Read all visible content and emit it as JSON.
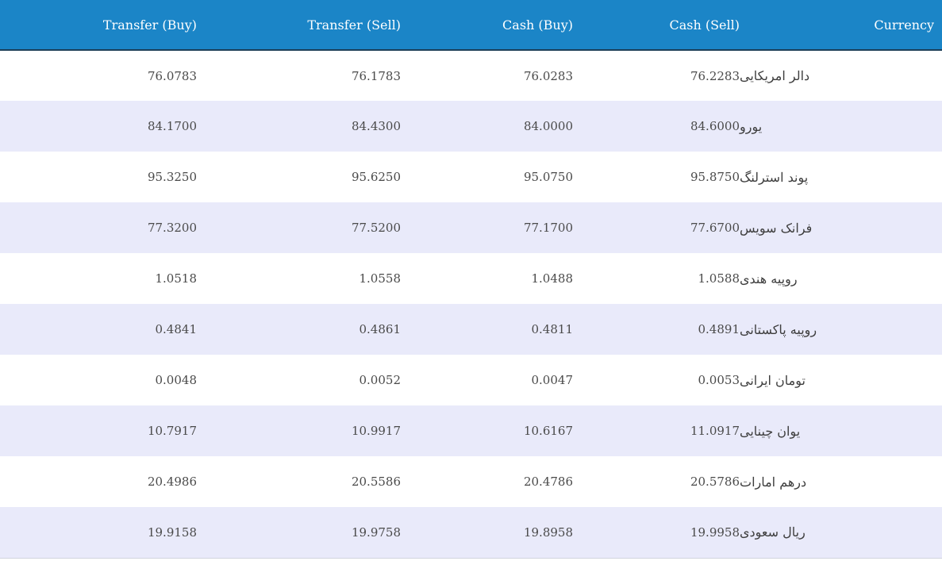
{
  "table": {
    "headers": {
      "transfer_buy": "Transfer (Buy)",
      "transfer_sell": "Transfer (Sell)",
      "cash_buy": "Cash (Buy)",
      "cash_sell": "Cash (Sell)",
      "currency": "Currency"
    },
    "rows": [
      {
        "transfer_buy": "76.0783",
        "transfer_sell": "76.1783",
        "cash_buy": "76.0283",
        "cash_sell": "76.2283",
        "currency": "دالر امریکایی"
      },
      {
        "transfer_buy": "84.1700",
        "transfer_sell": "84.4300",
        "cash_buy": "84.0000",
        "cash_sell": "84.6000",
        "currency": "یورو"
      },
      {
        "transfer_buy": "95.3250",
        "transfer_sell": "95.6250",
        "cash_buy": "95.0750",
        "cash_sell": "95.8750",
        "currency": "پوند استرلنگ"
      },
      {
        "transfer_buy": "77.3200",
        "transfer_sell": "77.5200",
        "cash_buy": "77.1700",
        "cash_sell": "77.6700",
        "currency": "فرانک سویس"
      },
      {
        "transfer_buy": "1.0518",
        "transfer_sell": "1.0558",
        "cash_buy": "1.0488",
        "cash_sell": "1.0588",
        "currency": "روپیه هندی"
      },
      {
        "transfer_buy": "0.4841",
        "transfer_sell": "0.4861",
        "cash_buy": "0.4811",
        "cash_sell": "0.4891",
        "currency": "روپیه پاکستانی"
      },
      {
        "transfer_buy": "0.0048",
        "transfer_sell": "0.0052",
        "cash_buy": "0.0047",
        "cash_sell": "0.0053",
        "currency": "تومان ایرانی"
      },
      {
        "transfer_buy": "10.7917",
        "transfer_sell": "10.9917",
        "cash_buy": "10.6167",
        "cash_sell": "11.0917",
        "currency": "یوان چینایی"
      },
      {
        "transfer_buy": "20.4986",
        "transfer_sell": "20.5586",
        "cash_buy": "20.4786",
        "cash_sell": "20.5786",
        "currency": "درهم امارات"
      },
      {
        "transfer_buy": "19.9158",
        "transfer_sell": "19.9758",
        "cash_buy": "19.8958",
        "cash_sell": "19.9958",
        "currency": "ریال سعودی"
      }
    ]
  },
  "colors": {
    "header_bg": "#1b85c7",
    "header_text": "#ffffff",
    "row_even_bg": "#e9eafa",
    "row_odd_bg": "#ffffff"
  }
}
